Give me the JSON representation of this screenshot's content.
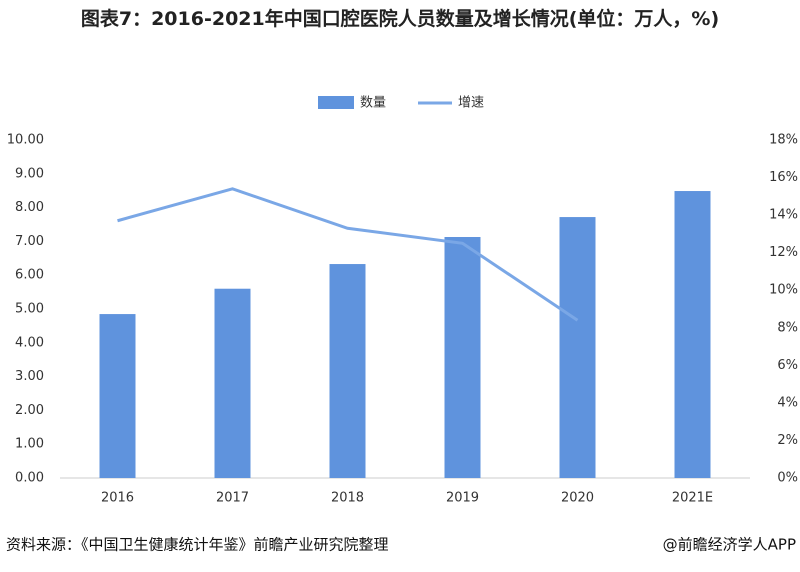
{
  "chart_data": {
    "type": "bar-line",
    "title": "图表7：2016-2021年中国口腔医院人员数量及增长情况(单位：万人，%)",
    "categories": [
      "2016",
      "2017",
      "2018",
      "2019",
      "2020",
      "2021E"
    ],
    "series": [
      {
        "name": "数量",
        "type": "bar",
        "color": "#5f93dd",
        "values": [
          4.85,
          5.6,
          6.33,
          7.13,
          7.72,
          8.49
        ]
      },
      {
        "name": "增速",
        "type": "line",
        "axis": "y2",
        "color": "#7aa7e6",
        "values": [
          13.7,
          15.4,
          13.3,
          12.5,
          8.4,
          null
        ]
      }
    ],
    "ylim": [
      0,
      10
    ],
    "yticks": [
      {
        "value": 0,
        "label": "0.00"
      },
      {
        "value": 1,
        "label": "1.00"
      },
      {
        "value": 2,
        "label": "2.00"
      },
      {
        "value": 3,
        "label": "3.00"
      },
      {
        "value": 4,
        "label": "4.00"
      },
      {
        "value": 5,
        "label": "5.00"
      },
      {
        "value": 6,
        "label": "6.00"
      },
      {
        "value": 7,
        "label": "7.00"
      },
      {
        "value": 8,
        "label": "8.00"
      },
      {
        "value": 9,
        "label": "9.00"
      },
      {
        "value": 10,
        "label": "10.00"
      }
    ],
    "y2lim": [
      0,
      18
    ],
    "y2ticks": [
      {
        "value": 0,
        "label": "0%"
      },
      {
        "value": 2,
        "label": "2%"
      },
      {
        "value": 4,
        "label": "4%"
      },
      {
        "value": 6,
        "label": "6%"
      },
      {
        "value": 8,
        "label": "8%"
      },
      {
        "value": 10,
        "label": "10%"
      },
      {
        "value": 12,
        "label": "12%"
      },
      {
        "value": 14,
        "label": "14%"
      },
      {
        "value": 16,
        "label": "16%"
      },
      {
        "value": 18,
        "label": "18%"
      }
    ],
    "source": "资料来源：《中国卫生健康统计年鉴》前瞻产业研究院整理",
    "credit": "@前瞻经济学人APP"
  }
}
